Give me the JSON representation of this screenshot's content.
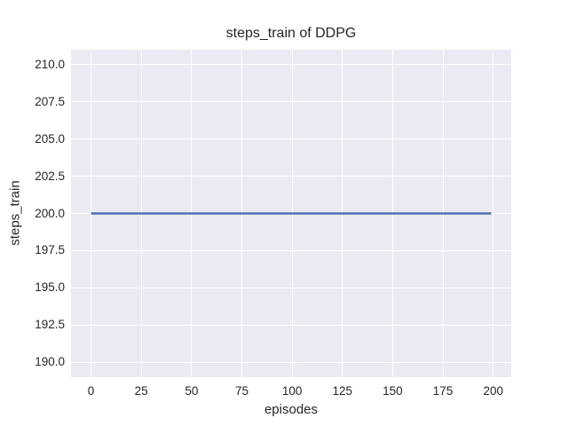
{
  "chart_data": {
    "type": "line",
    "title": "steps_train of DDPG",
    "xlabel": "episodes",
    "ylabel": "steps_train",
    "xlim": [
      -9.95,
      208.95
    ],
    "ylim": [
      189.0,
      211.0
    ],
    "x_ticks": [
      0,
      25,
      50,
      75,
      100,
      125,
      150,
      175,
      200
    ],
    "x_tick_labels": [
      "0",
      "25",
      "50",
      "75",
      "100",
      "125",
      "150",
      "175",
      "200"
    ],
    "y_ticks": [
      190.0,
      192.5,
      195.0,
      197.5,
      200.0,
      202.5,
      205.0,
      207.5,
      210.0
    ],
    "y_tick_labels": [
      "190.0",
      "192.5",
      "195.0",
      "197.5",
      "200.0",
      "202.5",
      "205.0",
      "207.5",
      "210.0"
    ],
    "grid": true,
    "legend": false,
    "series": [
      {
        "name": "steps_train",
        "color": "#4C72B0",
        "points": [
          [
            0,
            200
          ],
          [
            199,
            200
          ]
        ]
      }
    ],
    "colors": {
      "plot_background": "#EAEAF2",
      "grid": "#FFFFFF",
      "figure_background": "#FFFFFF",
      "text": "#262626"
    }
  }
}
